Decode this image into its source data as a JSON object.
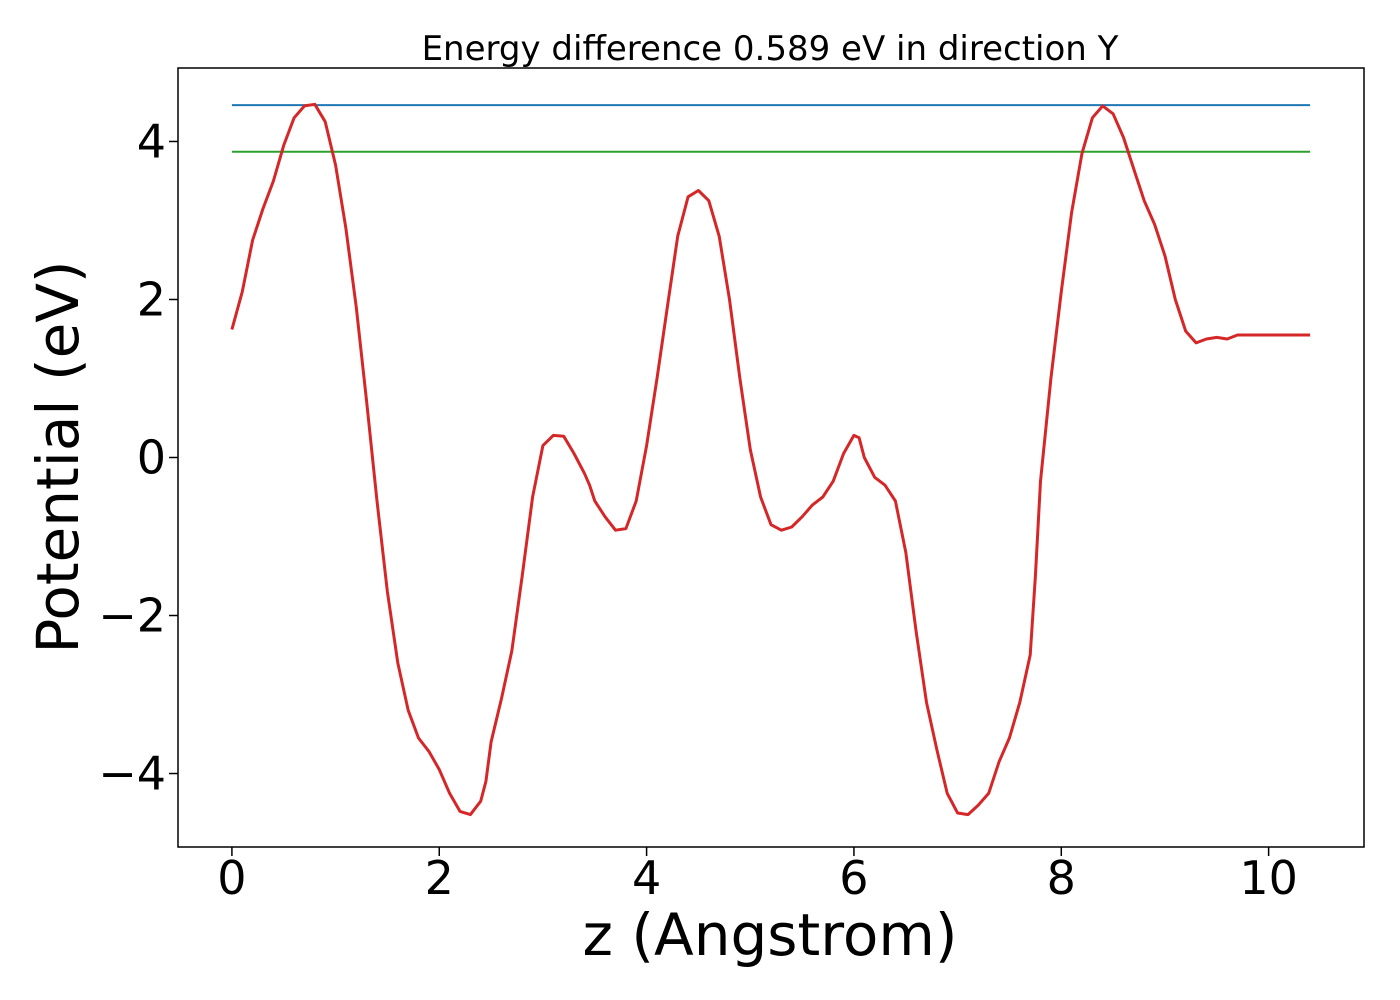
{
  "chart_data": {
    "type": "line",
    "title": "Energy difference 0.589 eV in direction Y",
    "xlabel": "z (Angstrom)",
    "ylabel": "Potential (eV)",
    "xlim": [
      -0.52,
      10.92
    ],
    "ylim": [
      -4.93,
      4.93
    ],
    "xticks": [
      0,
      2,
      4,
      6,
      8,
      10
    ],
    "yticks": [
      -4,
      -2,
      0,
      2,
      4
    ],
    "xtick_labels": [
      "0",
      "2",
      "4",
      "6",
      "8",
      "10"
    ],
    "ytick_labels": [
      "−4",
      "−2",
      "0",
      "2",
      "4"
    ],
    "grid": false,
    "legend": "none",
    "series": [
      {
        "color": "#1f77b4",
        "x": [
          0,
          10.4
        ],
        "y": [
          4.46,
          4.46
        ]
      },
      {
        "color": "#2ca02c",
        "x": [
          0,
          10.4
        ],
        "y": [
          3.87,
          3.87
        ]
      },
      {
        "color": "#d62728",
        "x": [
          0,
          0.1,
          0.2,
          0.3,
          0.4,
          0.5,
          0.6,
          0.7,
          0.8,
          0.9,
          1.0,
          1.1,
          1.2,
          1.3,
          1.4,
          1.5,
          1.6,
          1.7,
          1.8,
          1.9,
          2.0,
          2.1,
          2.2,
          2.3,
          2.4,
          2.45,
          2.5,
          2.6,
          2.7,
          2.8,
          2.9,
          3.0,
          3.1,
          3.2,
          3.3,
          3.4,
          3.45,
          3.5,
          3.6,
          3.7,
          3.8,
          3.9,
          4.0,
          4.1,
          4.2,
          4.3,
          4.4,
          4.5,
          4.6,
          4.7,
          4.8,
          4.9,
          5.0,
          5.1,
          5.2,
          5.3,
          5.4,
          5.5,
          5.6,
          5.7,
          5.8,
          5.9,
          6.0,
          6.05,
          6.1,
          6.2,
          6.3,
          6.4,
          6.5,
          6.6,
          6.7,
          6.8,
          6.9,
          7.0,
          7.1,
          7.2,
          7.3,
          7.4,
          7.5,
          7.6,
          7.7,
          7.75,
          7.8,
          7.9,
          8.0,
          8.1,
          8.2,
          8.3,
          8.4,
          8.5,
          8.6,
          8.7,
          8.8,
          8.9,
          9.0,
          9.1,
          9.2,
          9.3,
          9.4,
          9.5,
          9.6,
          9.7,
          9.8,
          9.9,
          10.0,
          10.1,
          10.2,
          10.3,
          10.4
        ],
        "y": [
          1.62,
          2.1,
          2.75,
          3.15,
          3.5,
          3.95,
          4.3,
          4.45,
          4.47,
          4.25,
          3.7,
          2.9,
          1.9,
          0.7,
          -0.55,
          -1.7,
          -2.6,
          -3.2,
          -3.55,
          -3.72,
          -3.95,
          -4.25,
          -4.48,
          -4.52,
          -4.35,
          -4.1,
          -3.6,
          -3.05,
          -2.45,
          -1.5,
          -0.5,
          0.15,
          0.28,
          0.27,
          0.05,
          -0.2,
          -0.35,
          -0.55,
          -0.75,
          -0.92,
          -0.9,
          -0.55,
          0.15,
          1.0,
          1.9,
          2.8,
          3.3,
          3.38,
          3.25,
          2.8,
          2.0,
          1.0,
          0.1,
          -0.5,
          -0.85,
          -0.92,
          -0.88,
          -0.75,
          -0.6,
          -0.5,
          -0.3,
          0.05,
          0.28,
          0.25,
          0.0,
          -0.25,
          -0.35,
          -0.55,
          -1.2,
          -2.2,
          -3.1,
          -3.7,
          -4.25,
          -4.5,
          -4.52,
          -4.4,
          -4.25,
          -3.85,
          -3.55,
          -3.1,
          -2.5,
          -1.5,
          -0.3,
          1.0,
          2.1,
          3.1,
          3.85,
          4.3,
          4.45,
          4.35,
          4.05,
          3.65,
          3.25,
          2.95,
          2.55,
          2.0,
          1.6,
          1.45,
          1.5,
          1.52,
          1.5,
          1.55,
          1.55,
          1.55,
          1.55,
          1.55,
          1.55,
          1.55,
          1.55
        ]
      }
    ]
  }
}
